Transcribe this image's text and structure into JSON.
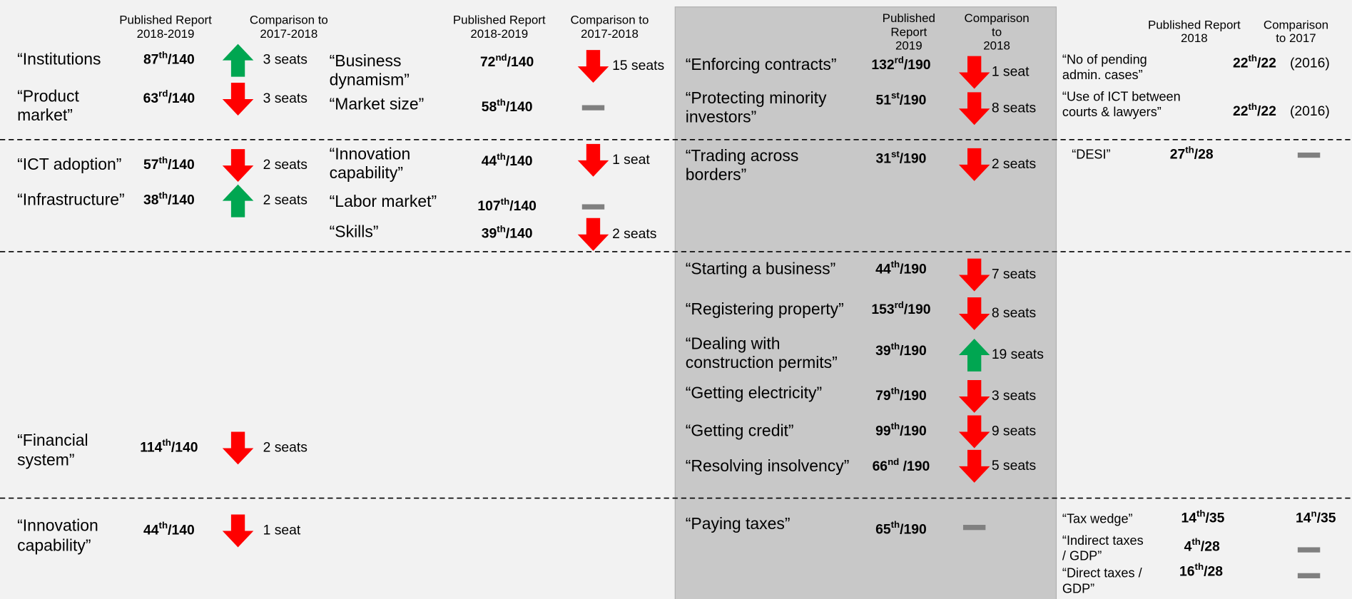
{
  "columns": [
    {
      "header": {
        "report": [
          "Published Report",
          "2018-2019"
        ],
        "comparison": [
          "Comparison to",
          "2017-2018"
        ]
      },
      "items": [
        {
          "label": [
            "“Institutions"
          ],
          "rank": {
            "num": "87",
            "sup": "th",
            "rest": "/140"
          },
          "trend": "up",
          "change": "3 seats"
        },
        {
          "label": [
            "“Product",
            "market”"
          ],
          "rank": {
            "num": "63",
            "sup": "rd",
            "rest": "/140"
          },
          "trend": "down",
          "change": "3 seats"
        },
        {
          "label": [
            "“ICT adoption”"
          ],
          "rank": {
            "num": "57",
            "sup": "th",
            "rest": "/140"
          },
          "trend": "down",
          "change": "2 seats"
        },
        {
          "label": [
            "“Infrastructure”"
          ],
          "rank": {
            "num": "38",
            "sup": "th",
            "rest": "/140"
          },
          "trend": "up",
          "change": "2 seats"
        },
        {
          "label": [
            "“Financial",
            "system”"
          ],
          "rank": {
            "num": "114",
            "sup": "th",
            "rest": "/140"
          },
          "trend": "down",
          "change": "2 seats"
        },
        {
          "label": [
            "“Innovation",
            "capability”"
          ],
          "rank": {
            "num": "44",
            "sup": "th",
            "rest": "/140"
          },
          "trend": "down",
          "change": "1 seat"
        }
      ]
    },
    {
      "header": {
        "report": [
          "Published Report",
          "2018-2019"
        ],
        "comparison": [
          "Comparison to",
          "2017-2018"
        ]
      },
      "items": [
        {
          "label": [
            "“Business",
            "dynamism”"
          ],
          "rank": {
            "num": "72",
            "sup": "nd",
            "rest": "/140"
          },
          "trend": "down",
          "change": "15 seats"
        },
        {
          "label": [
            "“Market size”"
          ],
          "rank": {
            "num": "58",
            "sup": "th",
            "rest": "/140"
          },
          "trend": "flat"
        },
        {
          "label": [
            "“Innovation",
            "capability”"
          ],
          "rank": {
            "num": "44",
            "sup": "th",
            "rest": "/140"
          },
          "trend": "down",
          "change": "1 seat"
        },
        {
          "label": [
            "“Labor market”"
          ],
          "rank": {
            "num": "107",
            "sup": "th",
            "rest": "/140"
          },
          "trend": "flat"
        },
        {
          "label": [
            "“Skills”"
          ],
          "rank": {
            "num": "39",
            "sup": "th",
            "rest": "/140"
          },
          "trend": "down",
          "change": "2 seats"
        }
      ]
    },
    {
      "header": {
        "report": [
          "Published",
          "Report",
          "2019"
        ],
        "comparison": [
          "Comparison",
          "to",
          "2018"
        ]
      },
      "items": [
        {
          "label": [
            "“Enforcing contracts”"
          ],
          "rank": {
            "num": "132",
            "sup": "rd",
            "rest": "/190"
          },
          "trend": "down",
          "change": "1 seat"
        },
        {
          "label": [
            "“Protecting minority",
            "investors”"
          ],
          "rank": {
            "num": "51",
            "sup": "st",
            "rest": "/190"
          },
          "trend": "down",
          "change": "8 seats"
        },
        {
          "label": [
            "“Trading across",
            "borders”"
          ],
          "rank": {
            "num": "31",
            "sup": "st",
            "rest": "/190"
          },
          "trend": "down",
          "change": "2 seats"
        },
        {
          "label": [
            "“Starting a business”"
          ],
          "rank": {
            "num": "44",
            "sup": "th",
            "rest": "/190"
          },
          "trend": "down",
          "change": "7 seats"
        },
        {
          "label": [
            "“Registering property”"
          ],
          "rank": {
            "num": "153",
            "sup": "rd",
            "rest": "/190"
          },
          "trend": "down",
          "change": "8 seats"
        },
        {
          "label": [
            "“Dealing with",
            "construction permits”"
          ],
          "rank": {
            "num": "39",
            "sup": "th",
            "rest": "/190"
          },
          "trend": "up",
          "change": "19 seats"
        },
        {
          "label": [
            "“Getting electricity”"
          ],
          "rank": {
            "num": "79",
            "sup": "th",
            "rest": "/190"
          },
          "trend": "down",
          "change": "3 seats"
        },
        {
          "label": [
            "“Getting credit”"
          ],
          "rank": {
            "num": "99",
            "sup": "th",
            "rest": "/190"
          },
          "trend": "down",
          "change": "9 seats"
        },
        {
          "label": [
            "“Resolving insolvency”"
          ],
          "rank": {
            "num": "66",
            "sup": "nd",
            "rest": " /190"
          },
          "trend": "down",
          "change": "5 seats"
        },
        {
          "label": [
            "“Paying taxes”"
          ],
          "rank": {
            "num": "65",
            "sup": "th",
            "rest": "/190"
          },
          "trend": "flat"
        }
      ]
    },
    {
      "header": {
        "report": [
          "Published Report",
          "2018"
        ],
        "comparison": [
          "Comparison",
          "to 2017"
        ]
      },
      "items": [
        {
          "label": [
            "“No of pending",
            "admin. cases”"
          ],
          "rank": {
            "num": "22",
            "sup": "th",
            "rest": "/22"
          },
          "note": "(2016)"
        },
        {
          "label": [
            "“Use of ICT between",
            "courts & lawyers”"
          ],
          "rank": {
            "num": "22",
            "sup": "th",
            "rest": "/22"
          },
          "note": "(2016)"
        },
        {
          "label": [
            "“DESI”"
          ],
          "rank": {
            "num": "27",
            "sup": "th",
            "rest": "/28"
          },
          "trend": "flat"
        },
        {
          "label": [
            "“Tax wedge”"
          ],
          "rank": {
            "num": "14",
            "sup": "th",
            "rest": "/35"
          },
          "comparison_rank": {
            "num": "14",
            "sup": "n",
            "rest": "/35"
          }
        },
        {
          "label": [
            "“Indirect taxes",
            "/ GDP”"
          ],
          "rank": {
            "num": "4",
            "sup": "th",
            "rest": "/28"
          },
          "trend": "flat"
        },
        {
          "label": [
            "“Direct taxes /",
            "GDP”"
          ],
          "rank": {
            "num": "16",
            "sup": "th",
            "rest": "/28"
          },
          "trend": "flat"
        }
      ]
    }
  ]
}
